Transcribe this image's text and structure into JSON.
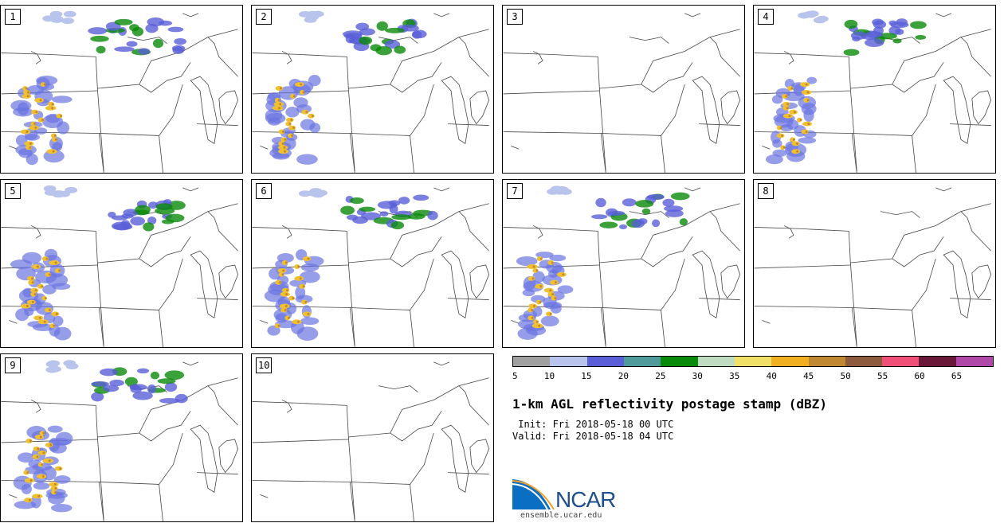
{
  "panels": [
    {
      "label": "1",
      "has_storms": true
    },
    {
      "label": "2",
      "has_storms": true
    },
    {
      "label": "3",
      "has_storms": false
    },
    {
      "label": "4",
      "has_storms": true
    },
    {
      "label": "5",
      "has_storms": true
    },
    {
      "label": "6",
      "has_storms": true
    },
    {
      "label": "7",
      "has_storms": true
    },
    {
      "label": "8",
      "has_storms": false
    },
    {
      "label": "9",
      "has_storms": true
    },
    {
      "label": "10",
      "has_storms": false
    }
  ],
  "colorbar": {
    "colors": [
      "#a0a0a0",
      "#b8c4ec",
      "#5a5fd8",
      "#4f9a9a",
      "#0a8a0a",
      "#c0dcc0",
      "#f0e068",
      "#f0b020",
      "#c08830",
      "#8c5a3c",
      "#f05078",
      "#6a1838",
      "#b048a8"
    ],
    "ticks": [
      "5",
      "10",
      "15",
      "20",
      "25",
      "30",
      "35",
      "40",
      "45",
      "50",
      "55",
      "60",
      "65"
    ]
  },
  "title": "1-km AGL reflectivity postage stamp (dBZ)",
  "init": " Init: Fri 2018-05-18 00 UTC",
  "valid": "Valid: Fri 2018-05-18 04 UTC",
  "logo": {
    "name": "NCAR",
    "site": "ensemble.ucar.edu",
    "brand_color": "#1f4f8c"
  }
}
